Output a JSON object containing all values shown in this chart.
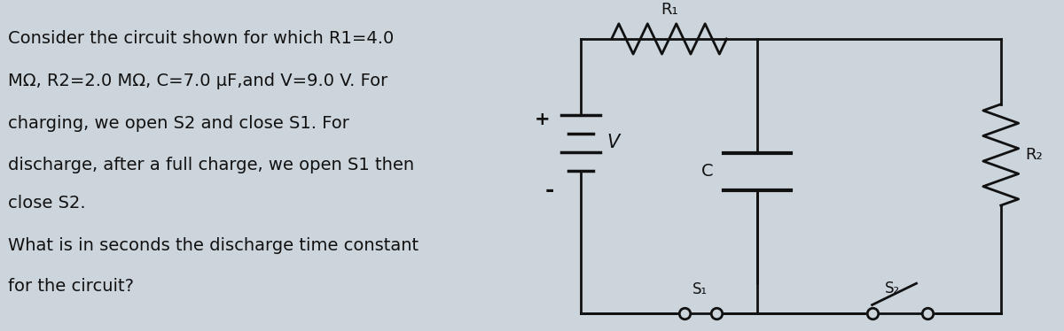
{
  "text_lines": [
    "Consider the circuit shown for which R1=4.0",
    "MΩ, R2=2.0 MΩ, C=7.0 μF,and V=9.0 V. For",
    "charging, we open S2 and close S1. For",
    "discharge, after a full charge, we open S1 then",
    "close S2.",
    "What is in seconds the discharge time constant",
    "for the circuit?"
  ],
  "bg_color": "#cdd5dc",
  "text_color": "#111111",
  "circuit_line_color": "#111111",
  "font_size": 14.0
}
